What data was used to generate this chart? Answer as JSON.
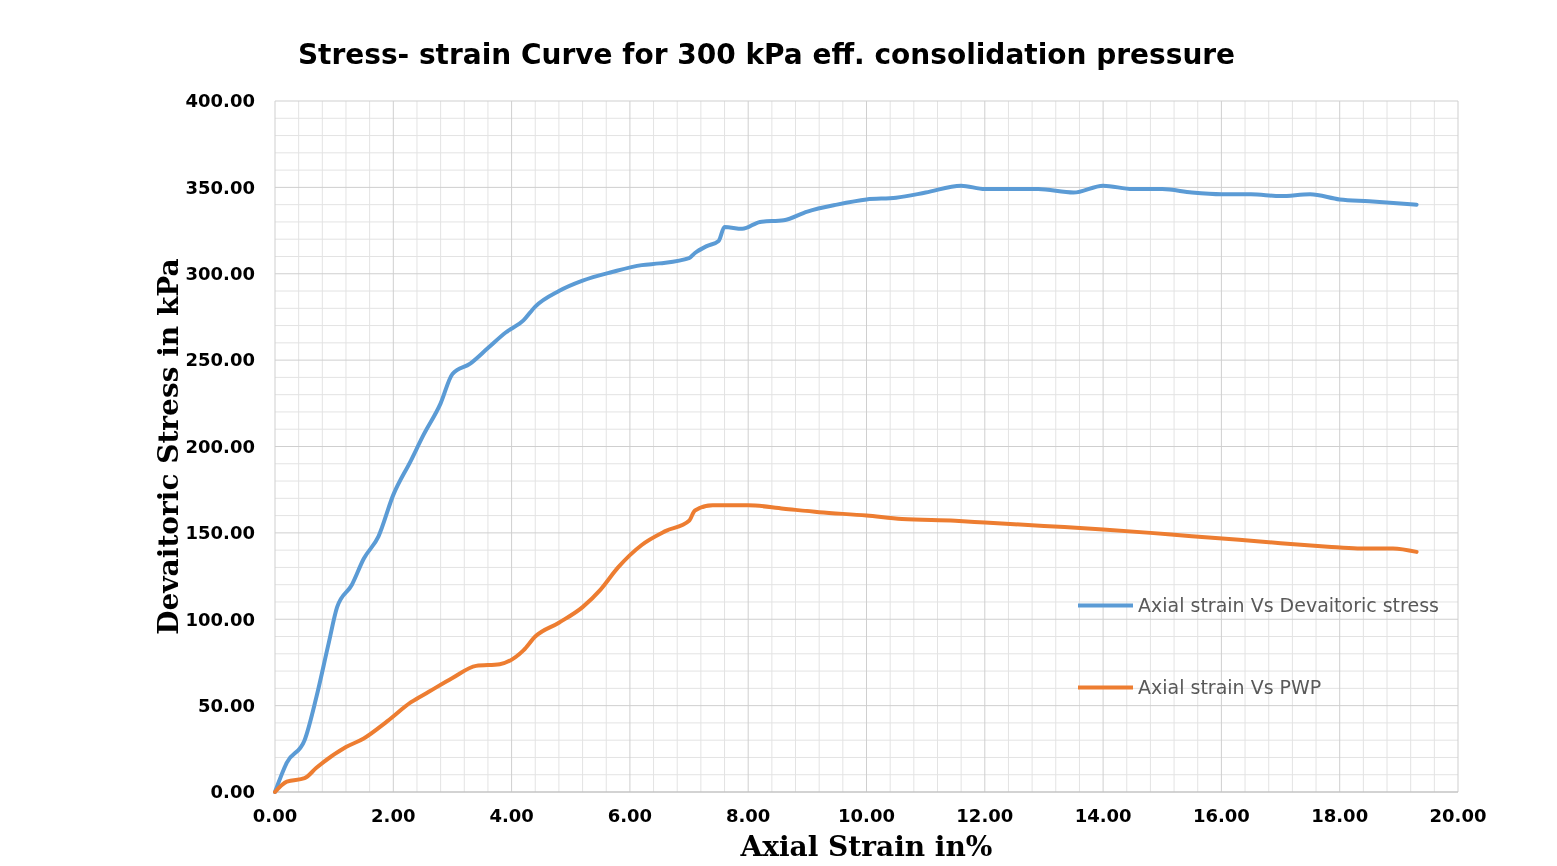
{
  "chart_data": {
    "type": "line",
    "title": "Stress- strain Curve for 300 kPa eff. consolidation pressure",
    "xlabel": "Axial Strain in%",
    "ylabel": "Devaitoric Stress in kPa",
    "xlim": [
      0,
      20
    ],
    "ylim": [
      0,
      400
    ],
    "xticks": [
      {
        "value": 0,
        "label": "0.00"
      },
      {
        "value": 2,
        "label": "2.00"
      },
      {
        "value": 4,
        "label": "4.00"
      },
      {
        "value": 6,
        "label": "6.00"
      },
      {
        "value": 8,
        "label": "8.00"
      },
      {
        "value": 10,
        "label": "10.00"
      },
      {
        "value": 12,
        "label": "12.00"
      },
      {
        "value": 14,
        "label": "14.00"
      },
      {
        "value": 16,
        "label": "16.00"
      },
      {
        "value": 18,
        "label": "18.00"
      },
      {
        "value": 20,
        "label": "20.00"
      }
    ],
    "yticks": [
      {
        "value": 0,
        "label": "0.00"
      },
      {
        "value": 50,
        "label": "50.00"
      },
      {
        "value": 100,
        "label": "100.00"
      },
      {
        "value": 150,
        "label": "150.00"
      },
      {
        "value": 200,
        "label": "200.00"
      },
      {
        "value": 250,
        "label": "250.00"
      },
      {
        "value": 300,
        "label": "300.00"
      },
      {
        "value": 350,
        "label": "350.00"
      },
      {
        "value": 400,
        "label": "400.00"
      }
    ],
    "grid": true,
    "legend": "right",
    "marker": "none",
    "line_style": "solid",
    "series": [
      {
        "name": "Axial strain Vs Devaitoric stress",
        "color": "#5b9bd5",
        "x": [
          0,
          0.2,
          0.5,
          0.7,
          0.9,
          1.05,
          1.3,
          1.5,
          1.75,
          2.0,
          2.3,
          2.5,
          2.8,
          3.0,
          3.3,
          3.6,
          3.9,
          4.2,
          4.4,
          4.8,
          5.2,
          5.7,
          6.2,
          6.5,
          7.0,
          7.1,
          7.3,
          7.5,
          7.6,
          7.9,
          8.2,
          8.6,
          9.0,
          9.5,
          10.0,
          10.5,
          11.0,
          11.6,
          12.0,
          12.6,
          12.9,
          13.5,
          14.0,
          14.5,
          15.0,
          15.5,
          16.0,
          16.5,
          17.0,
          17.5,
          18.0,
          18.5,
          19.3
        ],
        "values": [
          0,
          17,
          30,
          55,
          85,
          107,
          120,
          135,
          148,
          172,
          192,
          206,
          225,
          242,
          248,
          257,
          266,
          273,
          281,
          290,
          296,
          301,
          305,
          306,
          309,
          312,
          316,
          319,
          327,
          326,
          330,
          331,
          336,
          340,
          343,
          344,
          347,
          351,
          349,
          349,
          349,
          347,
          351,
          349,
          349,
          347,
          346,
          346,
          345,
          346,
          343,
          342,
          340
        ]
      },
      {
        "name": "Axial strain Vs PWP",
        "color": "#ed7d31",
        "x": [
          0,
          0.2,
          0.5,
          0.7,
          1.2,
          1.5,
          1.9,
          2.3,
          2.6,
          3.0,
          3.4,
          3.8,
          4.2,
          4.4,
          4.8,
          5.2,
          5.5,
          5.8,
          6.2,
          6.6,
          7.0,
          7.1,
          7.4,
          8.0,
          8.6,
          9.2,
          10.0,
          10.6,
          11.5,
          12.0,
          13.0,
          14.0,
          14.8,
          15.5,
          16.3,
          17.0,
          17.8,
          18.3,
          18.9,
          19.3
        ],
        "values": [
          0,
          6,
          8,
          14,
          26,
          31,
          41,
          52,
          58,
          66,
          73,
          74,
          82,
          90,
          98,
          107,
          117,
          130,
          143,
          151,
          157,
          163,
          166,
          166,
          164,
          162,
          160,
          158,
          157,
          156,
          154,
          152,
          150,
          148,
          146,
          144,
          142,
          141,
          141,
          139
        ]
      }
    ]
  }
}
